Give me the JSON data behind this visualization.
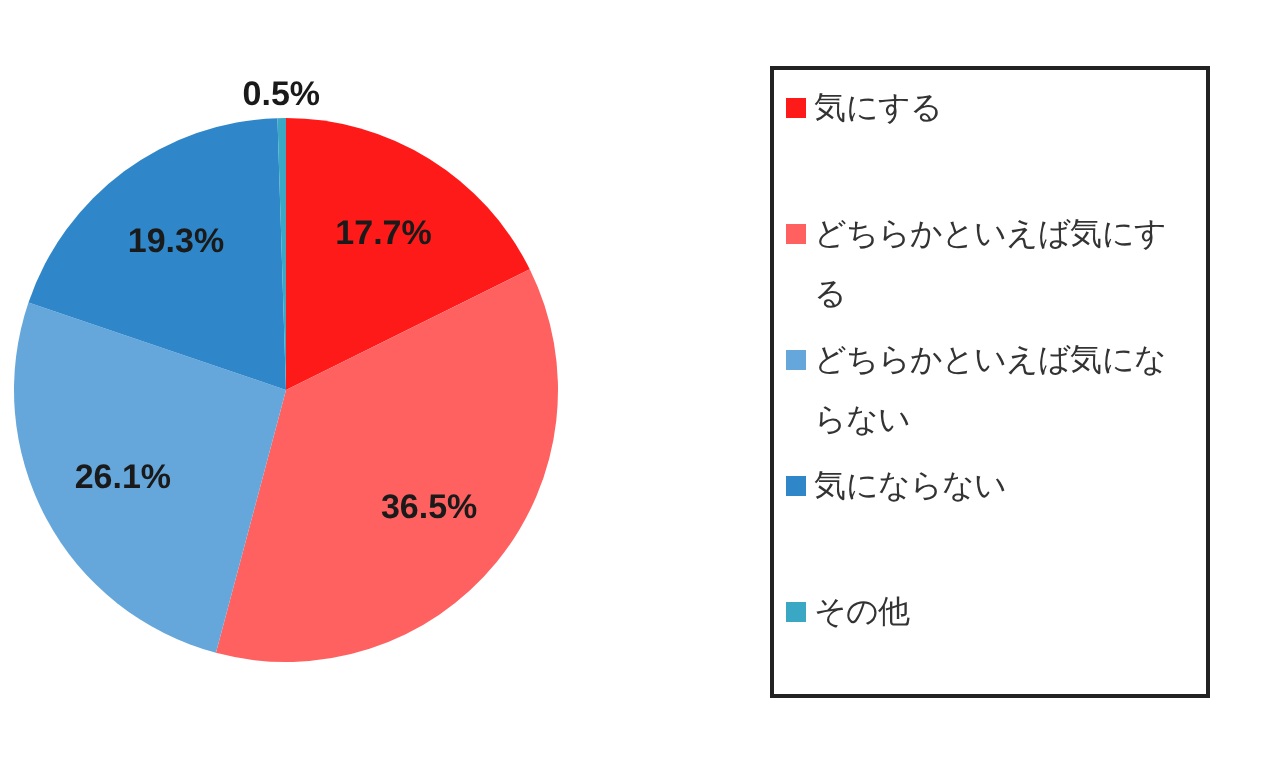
{
  "chart_data": {
    "type": "pie",
    "categories": [
      "気にする",
      "どちらかといえば気にする",
      "どちらかといえば気にならない",
      "気にならない",
      "その他"
    ],
    "values": [
      17.7,
      36.5,
      26.1,
      19.3,
      0.5
    ],
    "value_labels": [
      "17.7%",
      "36.5%",
      "26.1%",
      "19.3%",
      "0.5%"
    ],
    "colors": [
      "#ff1a1a",
      "#ff6161",
      "#65a7db",
      "#2f87c9",
      "#3aa8c4"
    ],
    "legend": "right"
  }
}
